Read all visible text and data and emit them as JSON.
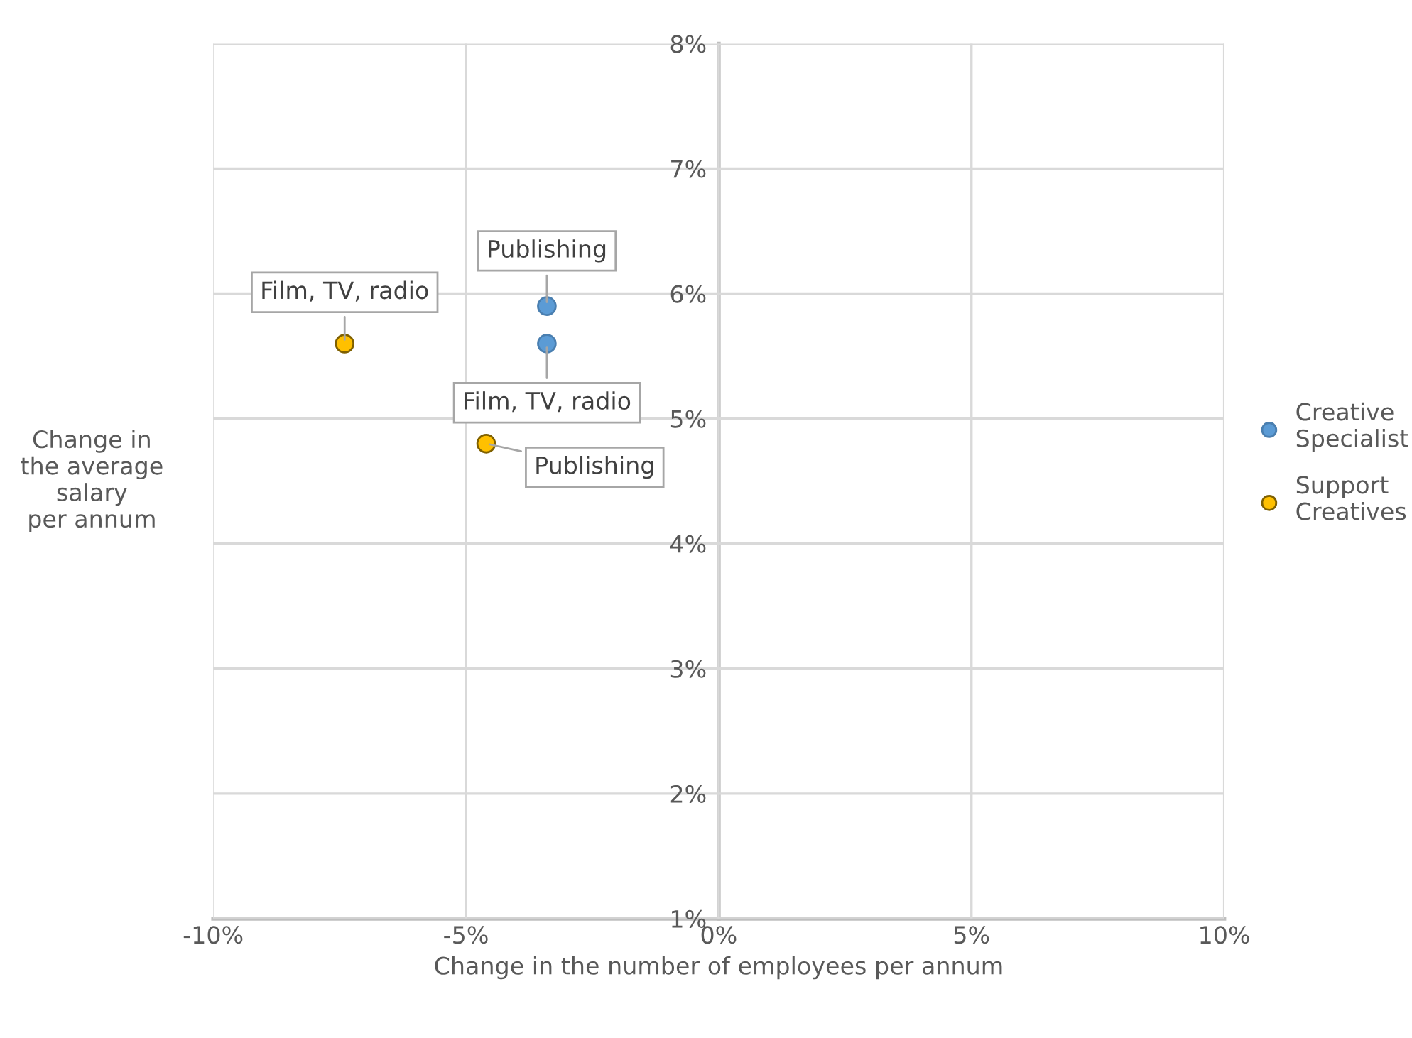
{
  "chart_data": {
    "type": "scatter",
    "xlabel": "Change in the number of employees per annum",
    "ylabel": "Change in\nthe average\nsalary\nper annum",
    "series": [
      {
        "name": "Creative\nSpecialist",
        "color": "#5b9bd5",
        "x": [
          -3.4,
          -3.4
        ],
        "values": [
          5.9,
          5.6
        ]
      },
      {
        "name": "Support\nCreatives",
        "color": "#ffc000",
        "x": [
          -7.4,
          -4.6
        ],
        "values": [
          5.6,
          4.8
        ]
      }
    ],
    "annotations": [
      {
        "text": "Publishing",
        "x": -3.4,
        "y": 5.9
      },
      {
        "text": "Film, TV, radio",
        "x": -3.4,
        "y": 5.6
      },
      {
        "text": "Film, TV, radio",
        "x": -7.4,
        "y": 5.6
      },
      {
        "text": "Publishing",
        "x": -4.6,
        "y": 4.8
      }
    ],
    "xlim": [
      -10,
      10
    ],
    "ylim": [
      1,
      8
    ],
    "xticks": [
      {
        "value": -10,
        "label": "-10%"
      },
      {
        "value": -5,
        "label": "-5%"
      },
      {
        "value": 0,
        "label": "0%"
      },
      {
        "value": 5,
        "label": "5%"
      },
      {
        "value": 10,
        "label": "10%"
      }
    ],
    "yticks": [
      {
        "value": 1,
        "label": "1%"
      },
      {
        "value": 2,
        "label": "2%"
      },
      {
        "value": 3,
        "label": "3%"
      },
      {
        "value": 4,
        "label": "4%"
      },
      {
        "value": 5,
        "label": "5%"
      },
      {
        "value": 6,
        "label": "6%"
      },
      {
        "value": 7,
        "label": "7%"
      },
      {
        "value": 8,
        "label": "8%"
      }
    ],
    "grid": true,
    "legend": "right",
    "marker": "circle"
  }
}
